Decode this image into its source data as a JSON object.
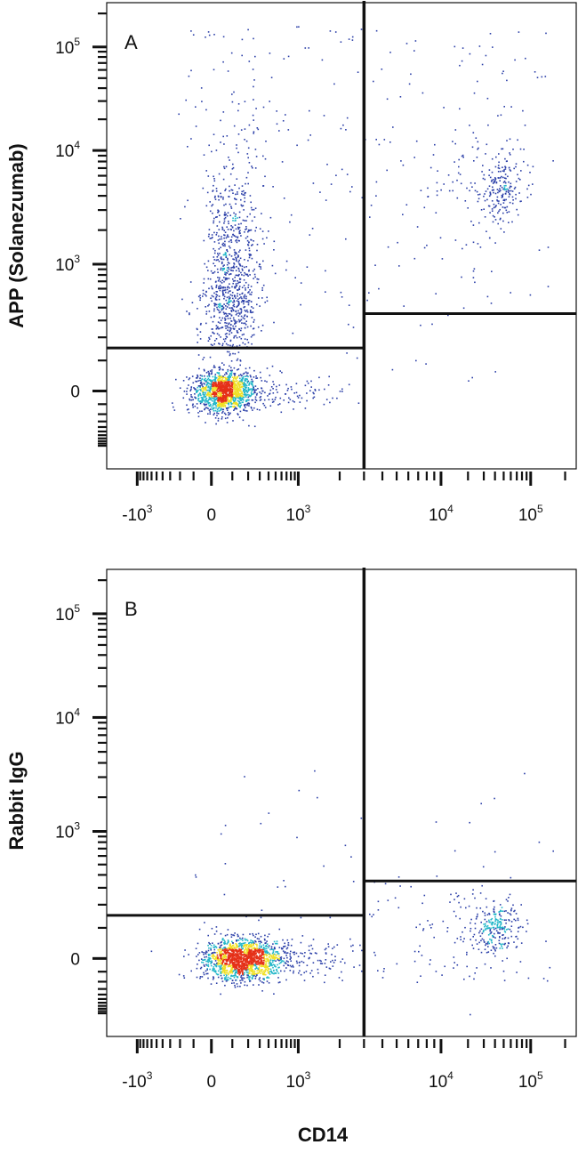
{
  "chart_data": [
    {
      "type": "scatter",
      "panel_label": "A",
      "xlabel": "",
      "ylabel": "APP (Solanezumab)",
      "x_scale": "biexponential",
      "y_scale": "biexponential",
      "xlim": [
        -3000,
        250000
      ],
      "ylim": [
        -3000,
        250000
      ],
      "x_ticks": [
        {
          "base": "-10",
          "exp": "3",
          "value": -1000
        },
        {
          "base": "0",
          "exp": "",
          "value": 0
        },
        {
          "base": "10",
          "exp": "3",
          "value": 1000
        },
        {
          "base": "10",
          "exp": "4",
          "value": 10000
        },
        {
          "base": "10",
          "exp": "5",
          "value": 100000
        }
      ],
      "y_ticks": [
        {
          "base": "0",
          "exp": "",
          "value": 0
        },
        {
          "base": "10",
          "exp": "3",
          "value": 1000
        },
        {
          "base": "10",
          "exp": "4",
          "value": 10000
        },
        {
          "base": "10",
          "exp": "5",
          "value": 100000
        }
      ],
      "gates": {
        "x_divider": 3000,
        "y_left": 150,
        "y_right": 350
      },
      "clusters": [
        {
          "x_center": 50,
          "y_center": 0,
          "n": 1500,
          "note": "dense double-negative population"
        },
        {
          "x_center": 100,
          "y_center": 1500,
          "n": 900,
          "note": "CD14- APP+ streak"
        },
        {
          "x_center": 45000,
          "y_center": 4500,
          "n": 260,
          "note": "CD14+ APP+ cluster"
        }
      ]
    },
    {
      "type": "scatter",
      "panel_label": "B",
      "xlabel": "CD14",
      "ylabel": "Rabbit IgG",
      "x_scale": "biexponential",
      "y_scale": "biexponential",
      "xlim": [
        -3000,
        250000
      ],
      "ylim": [
        -3000,
        250000
      ],
      "x_ticks": [
        {
          "base": "-10",
          "exp": "3",
          "value": -1000
        },
        {
          "base": "0",
          "exp": "",
          "value": 0
        },
        {
          "base": "10",
          "exp": "3",
          "value": 1000
        },
        {
          "base": "10",
          "exp": "4",
          "value": 10000
        },
        {
          "base": "10",
          "exp": "5",
          "value": 100000
        }
      ],
      "y_ticks": [
        {
          "base": "0",
          "exp": "",
          "value": 0
        },
        {
          "base": "10",
          "exp": "3",
          "value": 1000
        },
        {
          "base": "10",
          "exp": "4",
          "value": 10000
        },
        {
          "base": "10",
          "exp": "5",
          "value": 100000
        }
      ],
      "gates": {
        "x_divider": 3000,
        "y_left": 150,
        "y_right": 350
      },
      "clusters": [
        {
          "x_center": 150,
          "y_center": 0,
          "n": 1700,
          "note": "dense double-negative population"
        },
        {
          "x_center": 40000,
          "y_center": 100,
          "n": 320,
          "note": "CD14+ IgG- cluster"
        }
      ]
    }
  ],
  "colors": {
    "low": "#2b3fa8",
    "mid": "#21b6c8",
    "high": "#f0e024",
    "peak": "#e53018",
    "axis": "#111111"
  }
}
